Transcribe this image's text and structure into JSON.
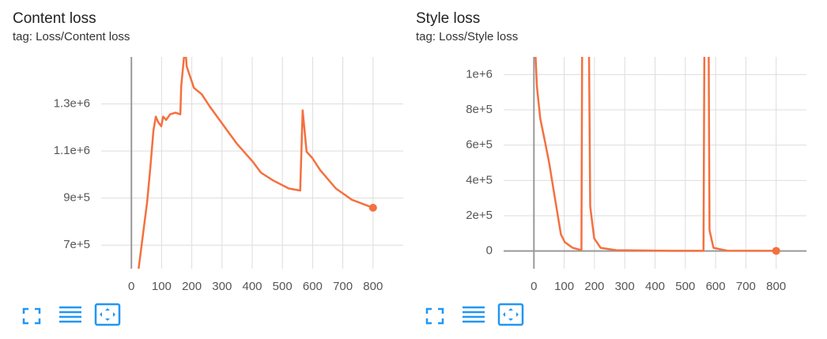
{
  "chart_data": [
    {
      "type": "line",
      "title": "Content loss",
      "subtitle": "tag: Loss/Content loss",
      "color": "#f4703f",
      "grid": true,
      "x": [
        20,
        42,
        52,
        63,
        73,
        81,
        89,
        99,
        105,
        115,
        128,
        146,
        162,
        165,
        178,
        183,
        207,
        233,
        259,
        311,
        350,
        403,
        429,
        469,
        521,
        559,
        567,
        580,
        599,
        625,
        677,
        730,
        800
      ],
      "values": [
        560000,
        781000,
        883000,
        1036000,
        1188000,
        1246000,
        1222000,
        1205000,
        1246000,
        1232000,
        1256000,
        1263000,
        1256000,
        1375000,
        1550000,
        1460000,
        1368000,
        1341000,
        1290000,
        1198000,
        1130000,
        1053000,
        1008000,
        975000,
        941000,
        932000,
        1273000,
        1097000,
        1070000,
        1019000,
        941000,
        893000,
        859000
      ],
      "xlim": [
        -100,
        900
      ],
      "xticks": [
        0,
        100,
        200,
        300,
        400,
        500,
        600,
        700,
        800
      ],
      "ylim": [
        600000,
        1500000
      ],
      "yticks": [
        {
          "value": 700000,
          "label": "7e+5"
        },
        {
          "value": 900000,
          "label": "9e+5"
        },
        {
          "value": 1100000,
          "label": "1.1e+6"
        },
        {
          "value": 1300000,
          "label": "1.3e+6"
        }
      ]
    },
    {
      "type": "line",
      "title": "Style loss",
      "subtitle": "tag: Loss/Style loss",
      "color": "#f4703f",
      "grid": true,
      "x": [
        3,
        10,
        21,
        37,
        50,
        63,
        76,
        89,
        102,
        128,
        157,
        161,
        178,
        186,
        199,
        220,
        272,
        455,
        560,
        565,
        575,
        580,
        593,
        638,
        800
      ],
      "values": [
        1200000,
        932000,
        751000,
        615000,
        502000,
        367000,
        231000,
        95000,
        50000,
        18000,
        5000,
        2000000,
        2000000,
        253000,
        72000,
        18000,
        5000,
        1000,
        1000,
        2000000,
        2000000,
        118000,
        18000,
        2000,
        1000
      ],
      "xlim": [
        -100,
        900
      ],
      "xticks": [
        0,
        100,
        200,
        300,
        400,
        500,
        600,
        700,
        800
      ],
      "ylim": [
        -100000,
        1100000
      ],
      "yticks": [
        0,
        {
          "value": 200000,
          "label": "2e+5"
        },
        {
          "value": 400000,
          "label": "4e+5"
        },
        {
          "value": 600000,
          "label": "6e+5"
        },
        {
          "value": 800000,
          "label": "8e+5"
        },
        {
          "value": 1000000,
          "label": "1e+6"
        }
      ]
    }
  ]
}
